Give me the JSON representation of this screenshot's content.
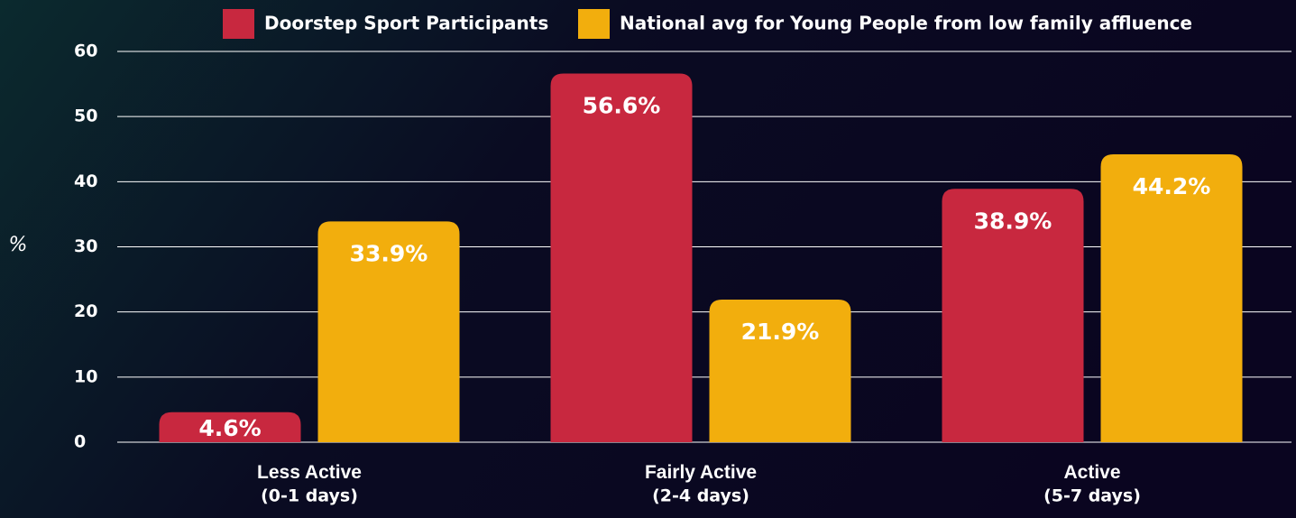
{
  "chart_data": {
    "type": "bar",
    "y_label": "%",
    "categories": [
      "Less Active\n(0-1 days)",
      "Fairly Active\n(2-4 days)",
      "Active\n(5-7 days)"
    ],
    "series": [
      {
        "name": "Doorstep Sport Participants",
        "color": "#c8283f",
        "values": [
          4.6,
          56.6,
          38.9
        ],
        "value_labels": [
          "4.6%",
          "56.6%",
          "38.9%"
        ]
      },
      {
        "name": "National avg for Young People from low family affluence",
        "color": "#f2ae0d",
        "values": [
          33.9,
          21.9,
          44.2
        ],
        "value_labels": [
          "33.9%",
          "21.9%",
          "44.2%"
        ]
      }
    ],
    "ylim": [
      0,
      60
    ],
    "yticks": [
      0,
      10,
      20,
      30,
      40,
      50,
      60
    ],
    "grid": true,
    "legend": "top"
  }
}
